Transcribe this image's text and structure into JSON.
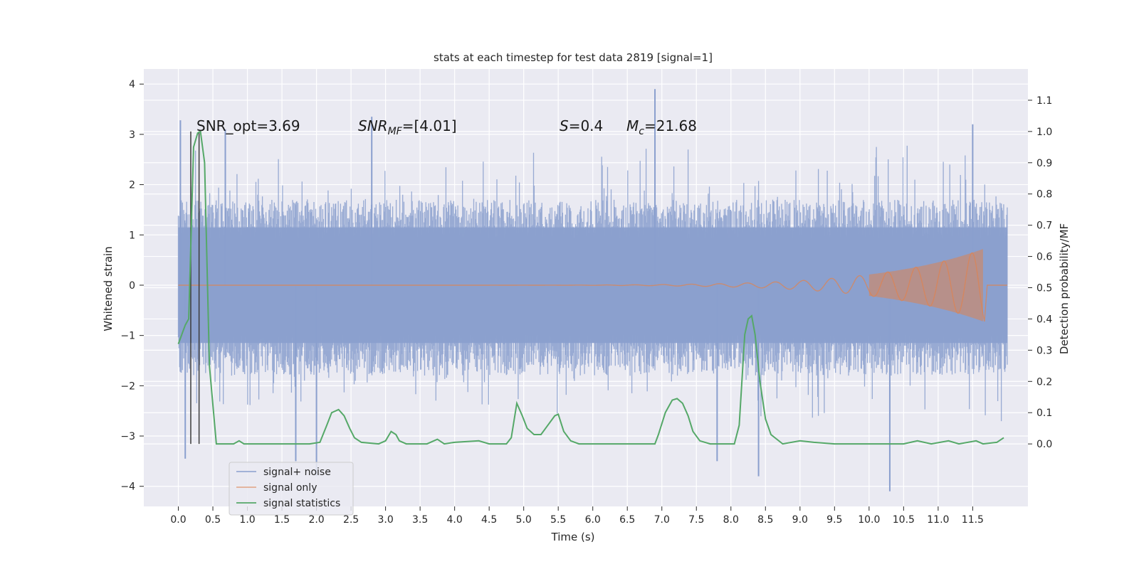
{
  "chart_data": {
    "type": "line",
    "title": "stats at each timestep for test data 2819 [signal=1]",
    "xlabel": "Time (s)",
    "ylabel": "Whitened strain",
    "ylabel_right": "Detection probability/MF",
    "xlim": [
      -0.5,
      12.3
    ],
    "ylim": [
      -4.4,
      4.3
    ],
    "ylim_right": [
      -0.2,
      1.2
    ],
    "x_ticks": [
      "0.0",
      "0.5",
      "1.0",
      "1.5",
      "2.0",
      "2.5",
      "3.0",
      "3.5",
      "4.0",
      "4.5",
      "5.0",
      "5.5",
      "6.0",
      "6.5",
      "7.0",
      "7.5",
      "8.0",
      "8.5",
      "9.0",
      "9.5",
      "10.0",
      "10.5",
      "11.0",
      "11.5"
    ],
    "y_ticks": [
      "4",
      "3",
      "2",
      "1",
      "0",
      "−1",
      "−2",
      "−3",
      "−4"
    ],
    "y_ticks_right": [
      "1.1",
      "1.0",
      "0.9",
      "0.8",
      "0.7",
      "0.6",
      "0.5",
      "0.4",
      "0.3",
      "0.2",
      "0.1",
      "0.0"
    ],
    "grid": true,
    "legend_position": "lower-left",
    "colors": {
      "noise": "#8a9fce",
      "signal": "#dd8452",
      "stats": "#55a868",
      "background": "#eaeaf2",
      "vline": "#3c3c3c"
    },
    "series": [
      {
        "name": "signal+ noise",
        "description_values": "dense noise band spanning x 0.0-12.0",
        "band_low": -1.8,
        "band_high": 1.7,
        "peaks_high": [
          [
            0.03,
            3.28
          ],
          [
            0.68,
            3.1
          ],
          [
            2.8,
            3.35
          ],
          [
            6.9,
            3.9
          ],
          [
            11.5,
            3.2
          ]
        ],
        "peaks_low": [
          [
            0.1,
            -3.45
          ],
          [
            1.7,
            -3.5
          ],
          [
            2.0,
            -3.8
          ],
          [
            7.8,
            -3.5
          ],
          [
            8.4,
            -3.8
          ],
          [
            10.3,
            -4.1
          ]
        ]
      },
      {
        "name": "signal only",
        "x_start": 0.0,
        "x_end": 12.0,
        "peak_x": 11.65,
        "peak_amplitude": 0.72
      },
      {
        "name": "signal statistics",
        "axis": "right",
        "points": [
          [
            0.0,
            0.32
          ],
          [
            0.1,
            0.38
          ],
          [
            0.15,
            0.4
          ],
          [
            0.22,
            0.95
          ],
          [
            0.28,
            0.995
          ],
          [
            0.32,
            1.0
          ],
          [
            0.38,
            0.9
          ],
          [
            0.45,
            0.25
          ],
          [
            0.55,
            0.0
          ],
          [
            0.8,
            0.0
          ],
          [
            0.88,
            0.01
          ],
          [
            0.95,
            0.0
          ],
          [
            1.2,
            0.0
          ],
          [
            1.9,
            0.0
          ],
          [
            2.05,
            0.005
          ],
          [
            2.15,
            0.06
          ],
          [
            2.22,
            0.1
          ],
          [
            2.32,
            0.11
          ],
          [
            2.4,
            0.09
          ],
          [
            2.48,
            0.05
          ],
          [
            2.55,
            0.02
          ],
          [
            2.65,
            0.005
          ],
          [
            2.9,
            0.0
          ],
          [
            3.0,
            0.01
          ],
          [
            3.08,
            0.04
          ],
          [
            3.15,
            0.03
          ],
          [
            3.2,
            0.01
          ],
          [
            3.3,
            0.0
          ],
          [
            3.6,
            0.0
          ],
          [
            3.75,
            0.015
          ],
          [
            3.85,
            0.0
          ],
          [
            4.0,
            0.005
          ],
          [
            4.35,
            0.01
          ],
          [
            4.5,
            0.0
          ],
          [
            4.75,
            0.0
          ],
          [
            4.82,
            0.02
          ],
          [
            4.9,
            0.13
          ],
          [
            4.98,
            0.09
          ],
          [
            5.05,
            0.05
          ],
          [
            5.15,
            0.03
          ],
          [
            5.25,
            0.03
          ],
          [
            5.35,
            0.06
          ],
          [
            5.45,
            0.09
          ],
          [
            5.5,
            0.095
          ],
          [
            5.58,
            0.04
          ],
          [
            5.68,
            0.01
          ],
          [
            5.8,
            0.0
          ],
          [
            6.5,
            0.0
          ],
          [
            6.9,
            0.0
          ],
          [
            6.95,
            0.03
          ],
          [
            7.05,
            0.1
          ],
          [
            7.15,
            0.14
          ],
          [
            7.22,
            0.145
          ],
          [
            7.3,
            0.13
          ],
          [
            7.38,
            0.09
          ],
          [
            7.45,
            0.04
          ],
          [
            7.55,
            0.01
          ],
          [
            7.7,
            0.0
          ],
          [
            8.05,
            0.0
          ],
          [
            8.12,
            0.06
          ],
          [
            8.2,
            0.35
          ],
          [
            8.25,
            0.4
          ],
          [
            8.3,
            0.41
          ],
          [
            8.35,
            0.35
          ],
          [
            8.42,
            0.2
          ],
          [
            8.5,
            0.08
          ],
          [
            8.58,
            0.03
          ],
          [
            8.75,
            0.0
          ],
          [
            9.0,
            0.01
          ],
          [
            9.2,
            0.005
          ],
          [
            9.5,
            0.0
          ],
          [
            10.5,
            0.0
          ],
          [
            10.7,
            0.01
          ],
          [
            10.9,
            0.0
          ],
          [
            11.15,
            0.01
          ],
          [
            11.3,
            0.0
          ],
          [
            11.55,
            0.01
          ],
          [
            11.65,
            0.0
          ],
          [
            11.85,
            0.005
          ],
          [
            11.95,
            0.02
          ]
        ]
      }
    ],
    "vertical_lines_x": [
      0.18,
      0.3
    ],
    "annotations": {
      "snr_opt": "SNR_opt=3.69",
      "snr_mf_a": "SNR",
      "snr_mf_b": "MF",
      "snr_mf_c": "=[4.01]",
      "s_a": "S",
      "s_b": "=0.4",
      "mc_a": "M",
      "mc_b": "c",
      "mc_c": "=21.68"
    }
  }
}
